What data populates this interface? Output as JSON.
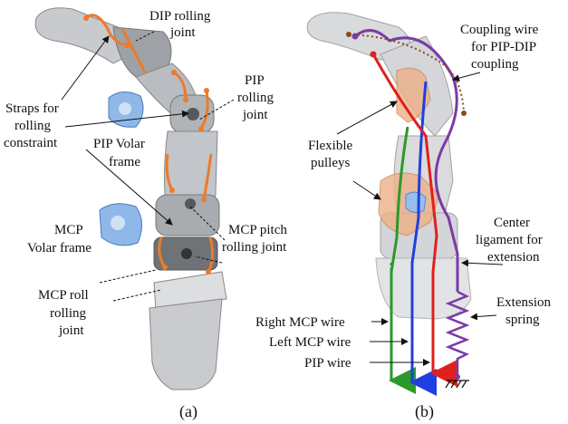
{
  "panel_a": {
    "caption": "(a)",
    "labels": {
      "dip_1": "DIP rolling",
      "dip_2": "joint",
      "pip_1": "PIP",
      "pip_2": "rolling",
      "pip_3": "joint",
      "straps_1": "Straps for",
      "straps_2": "rolling",
      "straps_3": "constraint",
      "pip_volar_1": "PIP Volar",
      "pip_volar_2": "frame",
      "mcp_volar_1": "MCP",
      "mcp_volar_2": "Volar frame",
      "mcp_pitch_1": "MCP pitch",
      "mcp_pitch_2": "rolling joint",
      "mcp_roll_1": "MCP roll",
      "mcp_roll_2": "rolling",
      "mcp_roll_3": "joint"
    }
  },
  "panel_b": {
    "caption": "(b)",
    "labels": {
      "coupling_1": "Coupling wire",
      "coupling_2": "for PIP-DIP",
      "coupling_3": "coupling",
      "pulleys_1": "Flexible",
      "pulleys_2": "pulleys",
      "ligament_1": "Center",
      "ligament_2": "ligament for",
      "ligament_3": "extension",
      "spring_1": "Extension",
      "spring_2": "spring",
      "right_mcp": "Right MCP wire",
      "left_mcp": "Left MCP wire",
      "pip_wire": "PIP wire"
    }
  },
  "colors": {
    "strap_orange": "#ee7a2a",
    "volar_blue": "#8fb8e8",
    "bone_gray": "#b9bcc0",
    "right_mcp_green": "#2a9a2a",
    "left_mcp_blue": "#1f3fe0",
    "pip_red": "#e0201e",
    "coupling_purple": "#7a3aa8",
    "coupling_dotted_brown": "#8a4a1a",
    "pulley_orange": "#eba87a"
  }
}
